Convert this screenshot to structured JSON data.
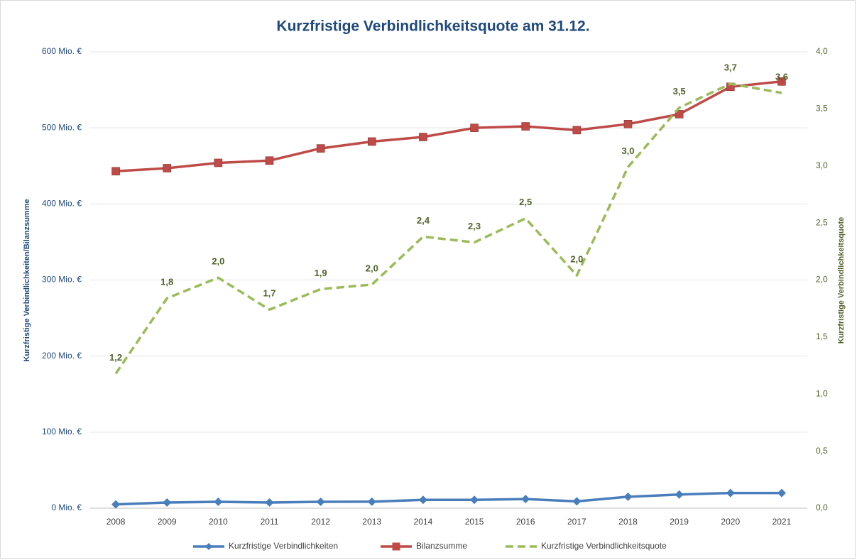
{
  "chart_data": {
    "type": "line",
    "title": "Kurzfristige Verbindlichkeitsquote am 31.12.",
    "y_label": "Kurzfristige Verbindlichkeiten/Bilanzsumme",
    "y2_label": "Kurzfristige Verbindlichkeitsquote",
    "categories": [
      "2008",
      "2009",
      "2010",
      "2011",
      "2012",
      "2013",
      "2014",
      "2015",
      "2016",
      "2017",
      "2018",
      "2019",
      "2020",
      "2021"
    ],
    "series": [
      {
        "name": "Kurzfristige Verbindlichkeiten",
        "color": "#4a7ebb",
        "marker": "diamond",
        "values": [
          5,
          7.5,
          8.4,
          7.5,
          8.4,
          8.5,
          11,
          11,
          12,
          9,
          15,
          18,
          20,
          20
        ]
      },
      {
        "name": "Bilanzsumme",
        "color": "#be4b48",
        "marker": "square",
        "values": [
          443,
          447,
          454,
          457,
          473,
          482,
          488,
          500,
          502,
          497,
          505,
          518,
          554,
          561
        ]
      },
      {
        "name": "Kurzfristige Verbindlichkeitsquote",
        "color": "#9bbb59",
        "axis": "y2",
        "dashed": true,
        "values": [
          1.18,
          1.84,
          2.02,
          1.74,
          1.92,
          1.96,
          2.38,
          2.33,
          2.54,
          2.04,
          2.99,
          3.51,
          3.72,
          3.64
        ],
        "value_labels": [
          "1,2",
          "1,8",
          "2,0",
          "1,7",
          "1,9",
          "2,0",
          "2,4",
          "2,3",
          "2,5",
          "2,0",
          "3,0",
          "3,5",
          "3,7",
          "3,6"
        ]
      }
    ],
    "ylim": [
      0,
      600
    ],
    "yticks": [
      {
        "value": 0,
        "label": "0 Mio. €"
      },
      {
        "value": 100,
        "label": "100 Mio. €"
      },
      {
        "value": 200,
        "label": "200 Mio. €"
      },
      {
        "value": 300,
        "label": "300 Mio. €"
      },
      {
        "value": 400,
        "label": "400 Mio. €"
      },
      {
        "value": 500,
        "label": "500 Mio. €"
      },
      {
        "value": 600,
        "label": "600 Mio. €"
      }
    ],
    "y2lim": [
      0,
      4
    ],
    "y2ticks": [
      {
        "value": 0,
        "label": "0,0"
      },
      {
        "value": 0.5,
        "label": "0,5"
      },
      {
        "value": 1,
        "label": "1,0"
      },
      {
        "value": 1.5,
        "label": "1,5"
      },
      {
        "value": 2,
        "label": "2,0"
      },
      {
        "value": 2.5,
        "label": "2,5"
      },
      {
        "value": 3,
        "label": "3,0"
      },
      {
        "value": 3.5,
        "label": "3,5"
      },
      {
        "value": 4,
        "label": "4,0"
      }
    ],
    "grid": true,
    "legend": "bottom"
  }
}
